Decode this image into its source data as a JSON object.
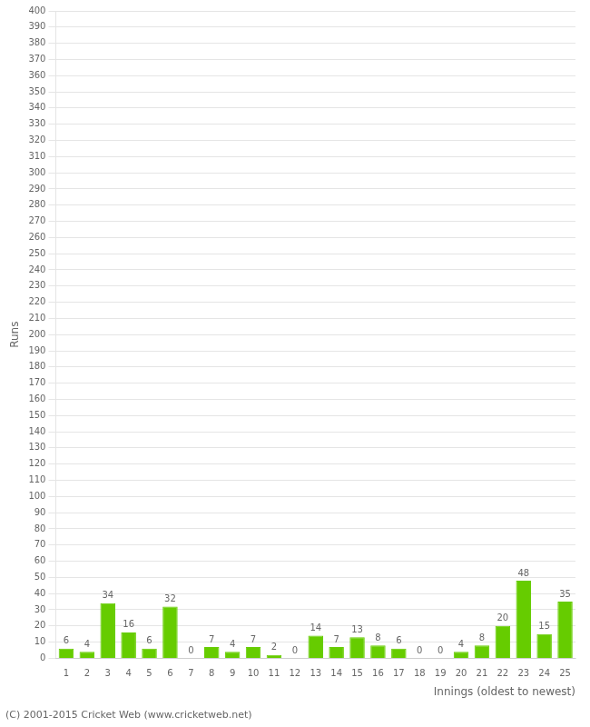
{
  "chart_data": {
    "type": "bar",
    "categories": [
      "1",
      "2",
      "3",
      "4",
      "5",
      "6",
      "7",
      "8",
      "9",
      "10",
      "11",
      "12",
      "13",
      "14",
      "15",
      "16",
      "17",
      "18",
      "19",
      "20",
      "21",
      "22",
      "23",
      "24",
      "25"
    ],
    "values": [
      6,
      4,
      34,
      16,
      6,
      32,
      0,
      7,
      4,
      7,
      2,
      0,
      14,
      7,
      13,
      8,
      6,
      0,
      0,
      4,
      8,
      20,
      48,
      15,
      35
    ],
    "color": "#66cc00",
    "xlabel": "Innings (oldest to newest)",
    "ylabel": "Runs",
    "ylim": [
      0,
      400
    ],
    "yticks": [
      0,
      10,
      20,
      30,
      40,
      50,
      60,
      70,
      80,
      90,
      100,
      110,
      120,
      130,
      140,
      150,
      160,
      170,
      180,
      190,
      200,
      210,
      220,
      230,
      240,
      250,
      260,
      270,
      280,
      290,
      300,
      310,
      320,
      330,
      340,
      350,
      360,
      370,
      380,
      390,
      400
    ],
    "grid": true,
    "data_labels": true,
    "annotations": [
      "(C) 2001-2015 Cricket Web (www.cricketweb.net)"
    ]
  }
}
